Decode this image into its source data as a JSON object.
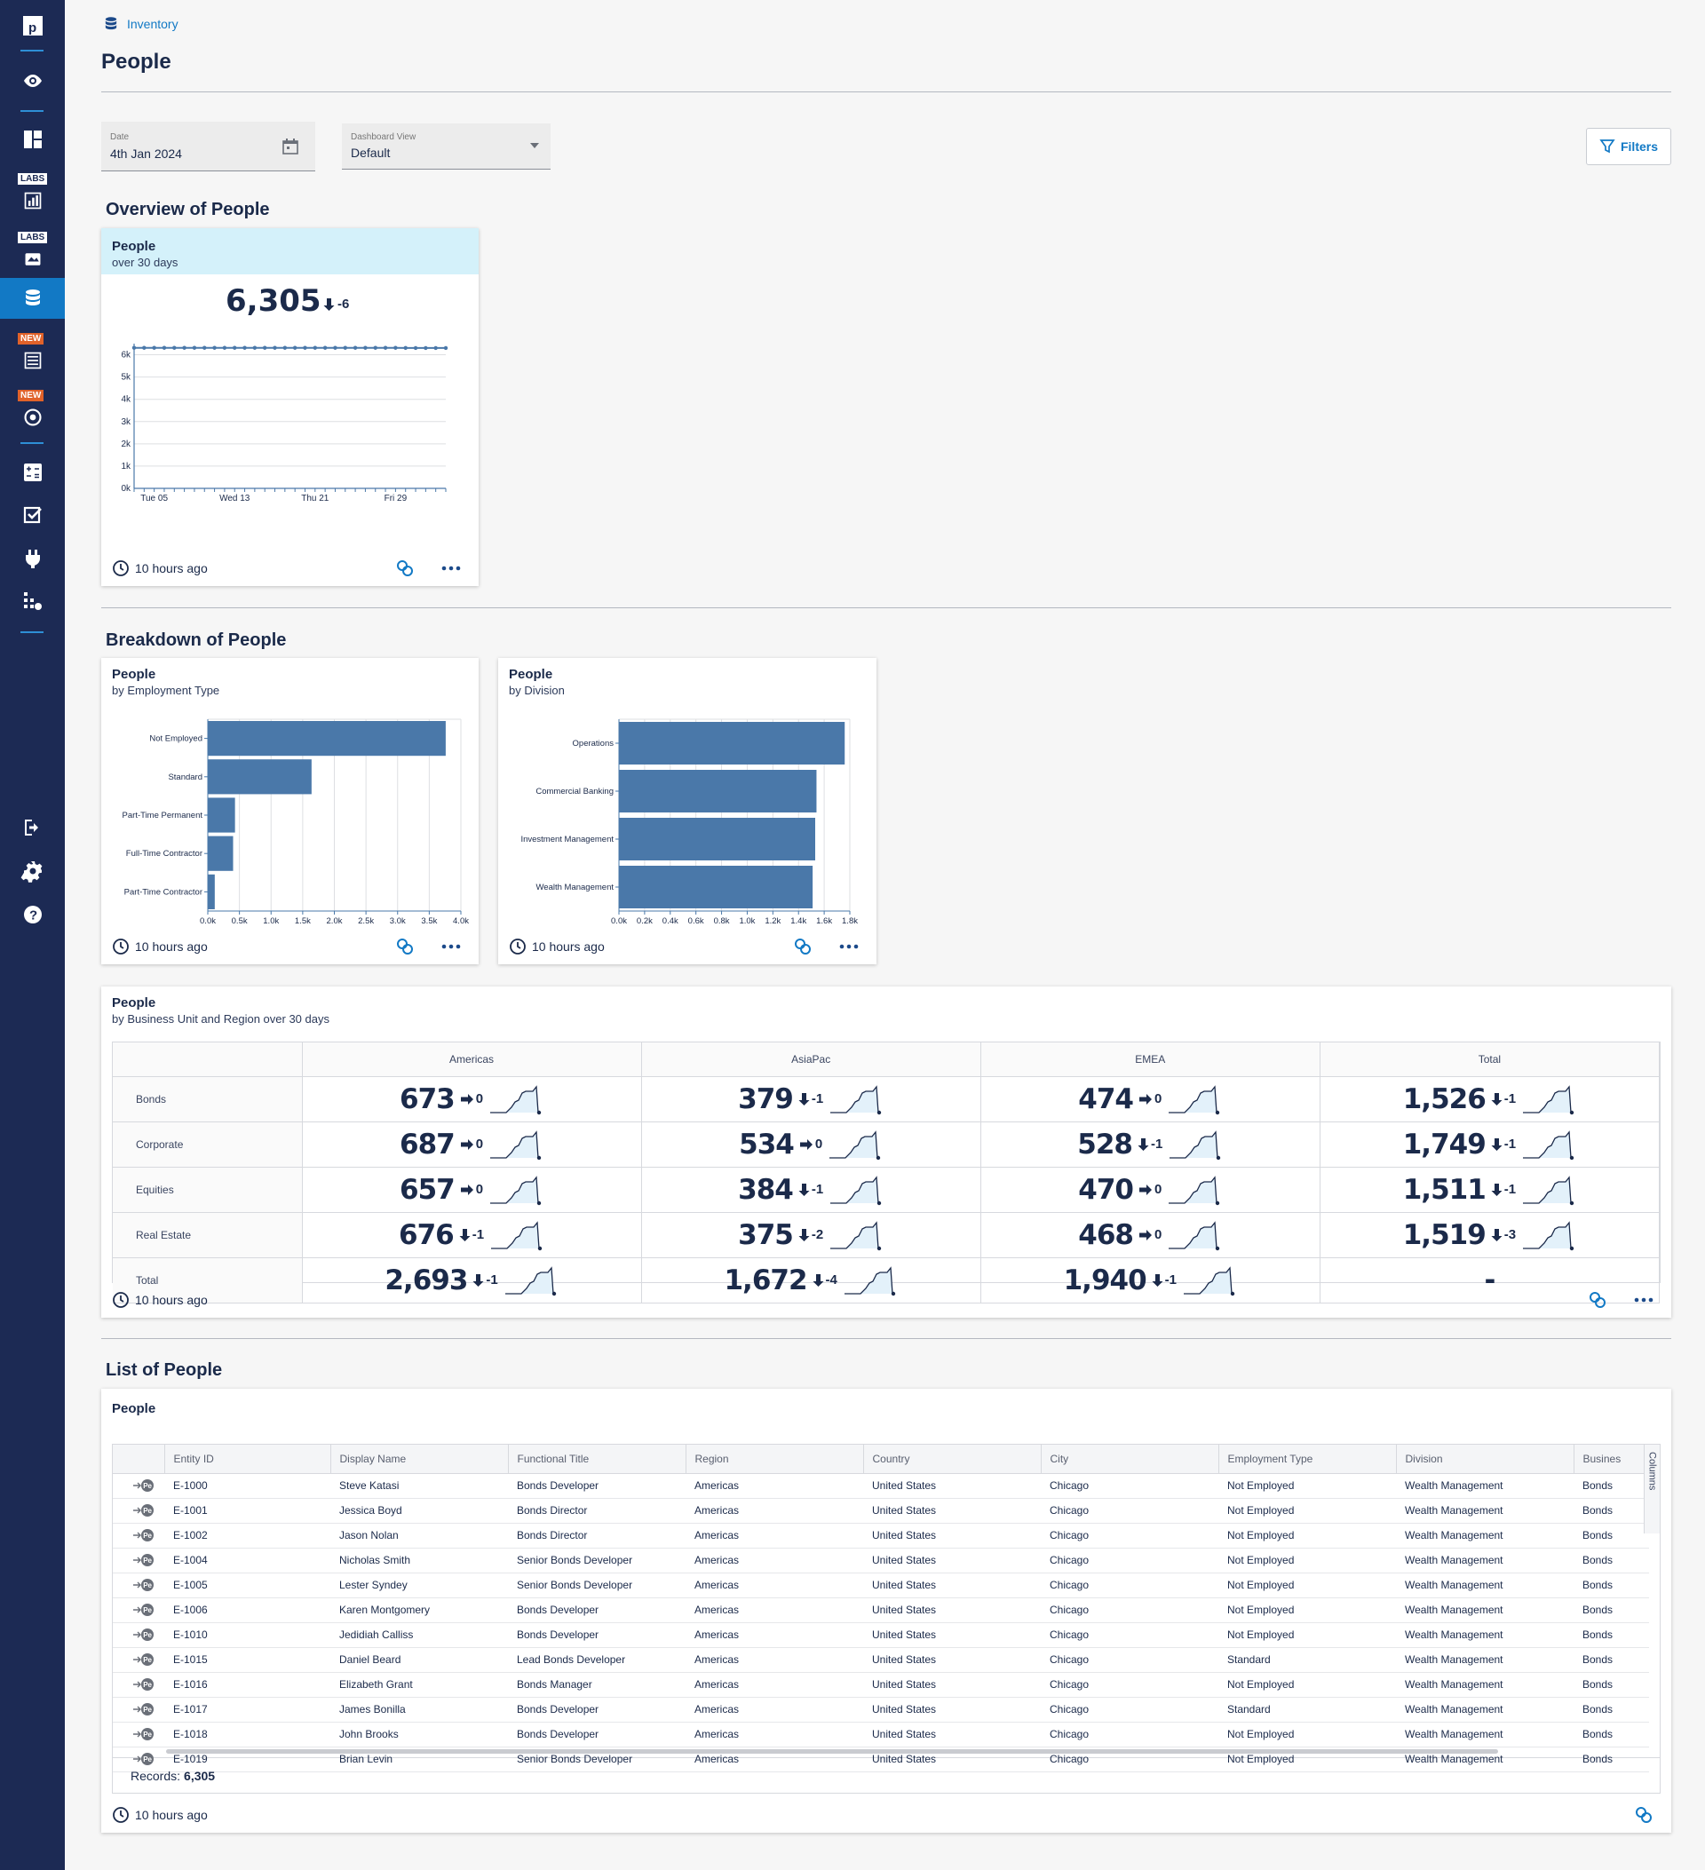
{
  "colors": {
    "sidebar": "#1c2a54",
    "accent": "#1279c5",
    "bar": "#4a78a9",
    "labs": "#ffffff",
    "new": "#e0622a"
  },
  "sidebar": {
    "items": [
      {
        "icon": "logo-icon"
      },
      {
        "icon": "eye-icon"
      },
      {
        "icon": "dashboard-icon"
      },
      {
        "icon": "labs-chart-icon",
        "badge": "LABS"
      },
      {
        "icon": "labs-map-icon",
        "badge": "LABS"
      },
      {
        "icon": "database-icon",
        "active": true
      },
      {
        "icon": "report-icon",
        "badge": "NEW"
      },
      {
        "icon": "target-icon",
        "badge": "NEW"
      },
      {
        "icon": "calculator-icon"
      },
      {
        "icon": "checkbox-icon"
      },
      {
        "icon": "plug-icon"
      },
      {
        "icon": "admin-icon"
      },
      {
        "icon": "logout-icon"
      },
      {
        "icon": "gear-icon"
      },
      {
        "icon": "help-icon"
      }
    ]
  },
  "breadcrumb": {
    "label": "Inventory"
  },
  "page": {
    "title": "People"
  },
  "filters": {
    "date": {
      "label": "Date",
      "value": "4th Jan 2024"
    },
    "view": {
      "label": "Dashboard View",
      "value": "Default"
    },
    "button": "Filters"
  },
  "sections": {
    "overview": "Overview of People",
    "breakdown": "Breakdown of People",
    "list": "List of People"
  },
  "overview_card": {
    "title": "People",
    "subtitle": "over 30 days",
    "value": "6,305",
    "delta": "-6",
    "updated": "10 hours ago"
  },
  "employment_card": {
    "title": "People",
    "subtitle": "by Employment Type",
    "updated": "10 hours ago"
  },
  "division_card": {
    "title": "People",
    "subtitle": "by Division",
    "updated": "10 hours ago"
  },
  "matrix_card": {
    "title": "People",
    "subtitle": "by Business Unit and Region over 30 days",
    "updated": "10 hours ago",
    "columns": [
      "Americas",
      "AsiaPac",
      "EMEA",
      "Total"
    ],
    "rows": [
      {
        "label": "Bonds",
        "cells": [
          {
            "v": "673",
            "d": "0",
            "dir": "flat"
          },
          {
            "v": "379",
            "d": "-1",
            "dir": "down"
          },
          {
            "v": "474",
            "d": "0",
            "dir": "flat"
          },
          {
            "v": "1,526",
            "d": "-1",
            "dir": "down"
          }
        ]
      },
      {
        "label": "Corporate",
        "cells": [
          {
            "v": "687",
            "d": "0",
            "dir": "flat"
          },
          {
            "v": "534",
            "d": "0",
            "dir": "flat"
          },
          {
            "v": "528",
            "d": "-1",
            "dir": "down"
          },
          {
            "v": "1,749",
            "d": "-1",
            "dir": "down"
          }
        ]
      },
      {
        "label": "Equities",
        "cells": [
          {
            "v": "657",
            "d": "0",
            "dir": "flat"
          },
          {
            "v": "384",
            "d": "-1",
            "dir": "down"
          },
          {
            "v": "470",
            "d": "0",
            "dir": "flat"
          },
          {
            "v": "1,511",
            "d": "-1",
            "dir": "down"
          }
        ]
      },
      {
        "label": "Real Estate",
        "cells": [
          {
            "v": "676",
            "d": "-1",
            "dir": "down"
          },
          {
            "v": "375",
            "d": "-2",
            "dir": "down"
          },
          {
            "v": "468",
            "d": "0",
            "dir": "flat"
          },
          {
            "v": "1,519",
            "d": "-3",
            "dir": "down"
          }
        ]
      },
      {
        "label": "Total",
        "cells": [
          {
            "v": "2,693",
            "d": "-1",
            "dir": "down"
          },
          {
            "v": "1,672",
            "d": "-4",
            "dir": "down"
          },
          {
            "v": "1,940",
            "d": "-1",
            "dir": "down"
          },
          {
            "v": "-",
            "d": "",
            "dir": "none"
          }
        ]
      }
    ]
  },
  "list_card": {
    "title": "People",
    "updated": "10 hours ago",
    "records_label": "Records:",
    "records_value": "6,305",
    "columns_tab": "Columns",
    "headers": [
      "Entity ID",
      "Display Name",
      "Functional Title",
      "Region",
      "Country",
      "City",
      "Employment Type",
      "Division",
      "Busines"
    ],
    "rows": [
      [
        "E-1000",
        "Steve Katasi",
        "Bonds Developer",
        "Americas",
        "United States",
        "Chicago",
        "Not Employed",
        "Wealth Management",
        "Bonds"
      ],
      [
        "E-1001",
        "Jessica Boyd",
        "Bonds Director",
        "Americas",
        "United States",
        "Chicago",
        "Not Employed",
        "Wealth Management",
        "Bonds"
      ],
      [
        "E-1002",
        "Jason Nolan",
        "Bonds Director",
        "Americas",
        "United States",
        "Chicago",
        "Not Employed",
        "Wealth Management",
        "Bonds"
      ],
      [
        "E-1004",
        "Nicholas Smith",
        "Senior Bonds Developer",
        "Americas",
        "United States",
        "Chicago",
        "Not Employed",
        "Wealth Management",
        "Bonds"
      ],
      [
        "E-1005",
        "Lester Syndey",
        "Senior Bonds Developer",
        "Americas",
        "United States",
        "Chicago",
        "Not Employed",
        "Wealth Management",
        "Bonds"
      ],
      [
        "E-1006",
        "Karen Montgomery",
        "Bonds Developer",
        "Americas",
        "United States",
        "Chicago",
        "Not Employed",
        "Wealth Management",
        "Bonds"
      ],
      [
        "E-1010",
        "Jedidiah Calliss",
        "Bonds Developer",
        "Americas",
        "United States",
        "Chicago",
        "Not Employed",
        "Wealth Management",
        "Bonds"
      ],
      [
        "E-1015",
        "Daniel Beard",
        "Lead Bonds Developer",
        "Americas",
        "United States",
        "Chicago",
        "Standard",
        "Wealth Management",
        "Bonds"
      ],
      [
        "E-1016",
        "Elizabeth Grant",
        "Bonds Manager",
        "Americas",
        "United States",
        "Chicago",
        "Not Employed",
        "Wealth Management",
        "Bonds"
      ],
      [
        "E-1017",
        "James Bonilla",
        "Bonds Developer",
        "Americas",
        "United States",
        "Chicago",
        "Standard",
        "Wealth Management",
        "Bonds"
      ],
      [
        "E-1018",
        "John Brooks",
        "Bonds Developer",
        "Americas",
        "United States",
        "Chicago",
        "Not Employed",
        "Wealth Management",
        "Bonds"
      ],
      [
        "E-1019",
        "Brian Levin",
        "Senior Bonds Developer",
        "Americas",
        "United States",
        "Chicago",
        "Not Employed",
        "Wealth Management",
        "Bonds"
      ]
    ]
  },
  "chart_data": [
    {
      "type": "line",
      "x_ticks": [
        "Tue 05",
        "Wed 13",
        "Thu 21",
        "Fri 29"
      ],
      "y_ticks": [
        "0k",
        "1k",
        "2k",
        "3k",
        "4k",
        "5k",
        "6k"
      ],
      "ylim": [
        0,
        6500
      ],
      "values": [
        6311,
        6311,
        6311,
        6311,
        6311,
        6311,
        6311,
        6311,
        6311,
        6311,
        6311,
        6311,
        6311,
        6311,
        6311,
        6311,
        6311,
        6311,
        6311,
        6311,
        6311,
        6311,
        6311,
        6311,
        6311,
        6311,
        6311,
        6306,
        6305,
        6305,
        6305,
        6305
      ]
    },
    {
      "type": "bar",
      "orientation": "horizontal",
      "categories": [
        "Not Employed",
        "Standard",
        "Part-Time Permanent",
        "Full-Time Contractor",
        "Part-Time Contractor"
      ],
      "values": [
        3760,
        1640,
        430,
        400,
        110
      ],
      "x_ticks": [
        "0.0k",
        "0.5k",
        "1.0k",
        "1.5k",
        "2.0k",
        "2.5k",
        "3.0k",
        "3.5k",
        "4.0k"
      ],
      "xlim": [
        0,
        4000
      ]
    },
    {
      "type": "bar",
      "orientation": "horizontal",
      "categories": [
        "Operations",
        "Commercial Banking",
        "Investment Management",
        "Wealth Management"
      ],
      "values": [
        1760,
        1540,
        1530,
        1510
      ],
      "x_ticks": [
        "0.0k",
        "0.2k",
        "0.4k",
        "0.6k",
        "0.8k",
        "1.0k",
        "1.2k",
        "1.4k",
        "1.6k",
        "1.8k"
      ],
      "xlim": [
        0,
        1800
      ]
    }
  ]
}
